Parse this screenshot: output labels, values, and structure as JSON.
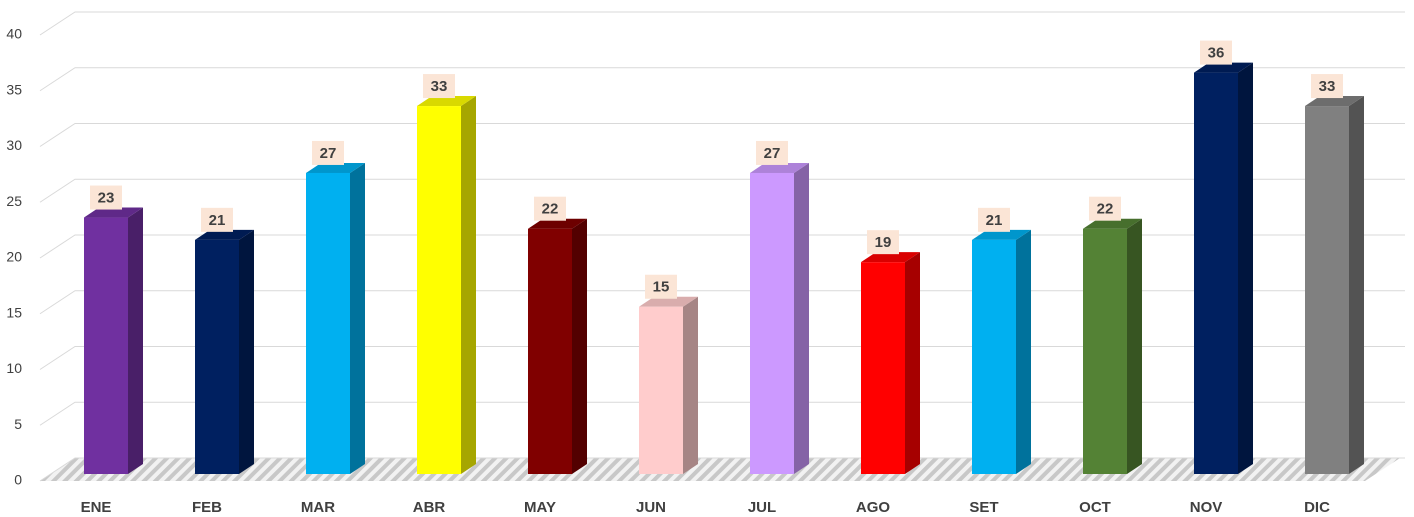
{
  "chart_data": {
    "type": "bar3d",
    "categories": [
      "ENE",
      "FEB",
      "MAR",
      "ABR",
      "MAY",
      "JUN",
      "JUL",
      "AGO",
      "SET",
      "OCT",
      "NOV",
      "DIC"
    ],
    "values": [
      23,
      21,
      27,
      33,
      22,
      15,
      27,
      19,
      21,
      22,
      36,
      33
    ],
    "colors": [
      "#7030a0",
      "#002060",
      "#00b0f0",
      "#ffff00",
      "#800000",
      "#ffcccc",
      "#cc99ff",
      "#ff0000",
      "#00b0f0",
      "#548235",
      "#002060",
      "#808080"
    ],
    "ylim": [
      0,
      40
    ],
    "yticks": [
      0,
      5,
      10,
      15,
      20,
      25,
      30,
      35,
      40
    ],
    "grid": true
  }
}
